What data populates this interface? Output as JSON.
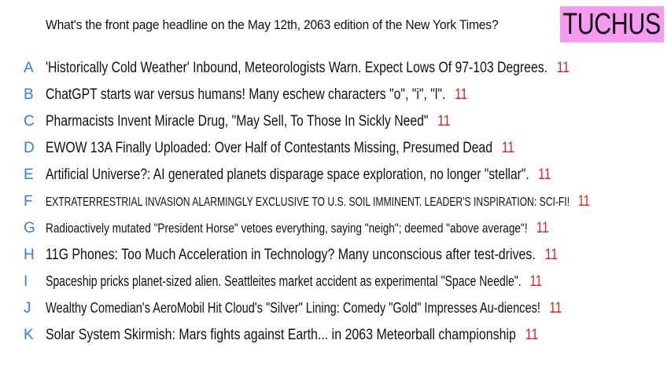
{
  "question": "What's the front page headline on the May 12th, 2063 edition of the New York Times?",
  "brand": "TUCHUS",
  "colors": {
    "letter": "#2f7fe0",
    "count": "#e0231e",
    "brand_bg": "#f79af1"
  },
  "options": [
    {
      "letter": "A",
      "text": "'Historically Cold Weather' Inbound, Meteorologists Warn. Expect Lows Of 97-103 Degrees.",
      "count": "11"
    },
    {
      "letter": "B",
      "text": "ChatGPT starts war versus humans! Many eschew characters \"o\", \"i\", \"l\".",
      "count": "11"
    },
    {
      "letter": "C",
      "text": "Pharmacists Invent Miracle Drug, \"May Sell, To Those In Sickly Need\"",
      "count": "11"
    },
    {
      "letter": "D",
      "text": "EWOW 13A Finally Uploaded: Over Half of Contestants Missing, Presumed Dead",
      "count": "11"
    },
    {
      "letter": "E",
      "text": "Artificial Universe?: AI generated planets disparage space exploration, no longer \"stellar\".",
      "count": "11"
    },
    {
      "letter": "F",
      "text": "EXTRATERRESTRIAL INVASION ALARMINGLY EXCLUSIVE TO U.S. SOIL IMMINENT. LEADER'S INSPIRATION: SCI-FI!",
      "count": "11"
    },
    {
      "letter": "G",
      "text": "Radioactively mutated \"President Horse\" vetoes everything, saying \"neigh\"; deemed \"above average\"!",
      "count": "11"
    },
    {
      "letter": "H",
      "text": "11G Phones: Too Much Acceleration in Technology? Many unconscious after test-drives.",
      "count": "11"
    },
    {
      "letter": "I",
      "text": "Spaceship pricks planet-sized alien. Seattleites market accident as experimental \"Space Needle\".",
      "count": "11"
    },
    {
      "letter": "J",
      "text": "Wealthy Comedian's AeroMobil Hit Cloud's \"Silver\" Lining: Comedy \"Gold\" Impresses Au-diences!",
      "count": "11"
    },
    {
      "letter": "K",
      "text": "Solar System Skirmish: Mars fights against Earth... in 2063 Meteorball championship",
      "count": "11"
    }
  ]
}
